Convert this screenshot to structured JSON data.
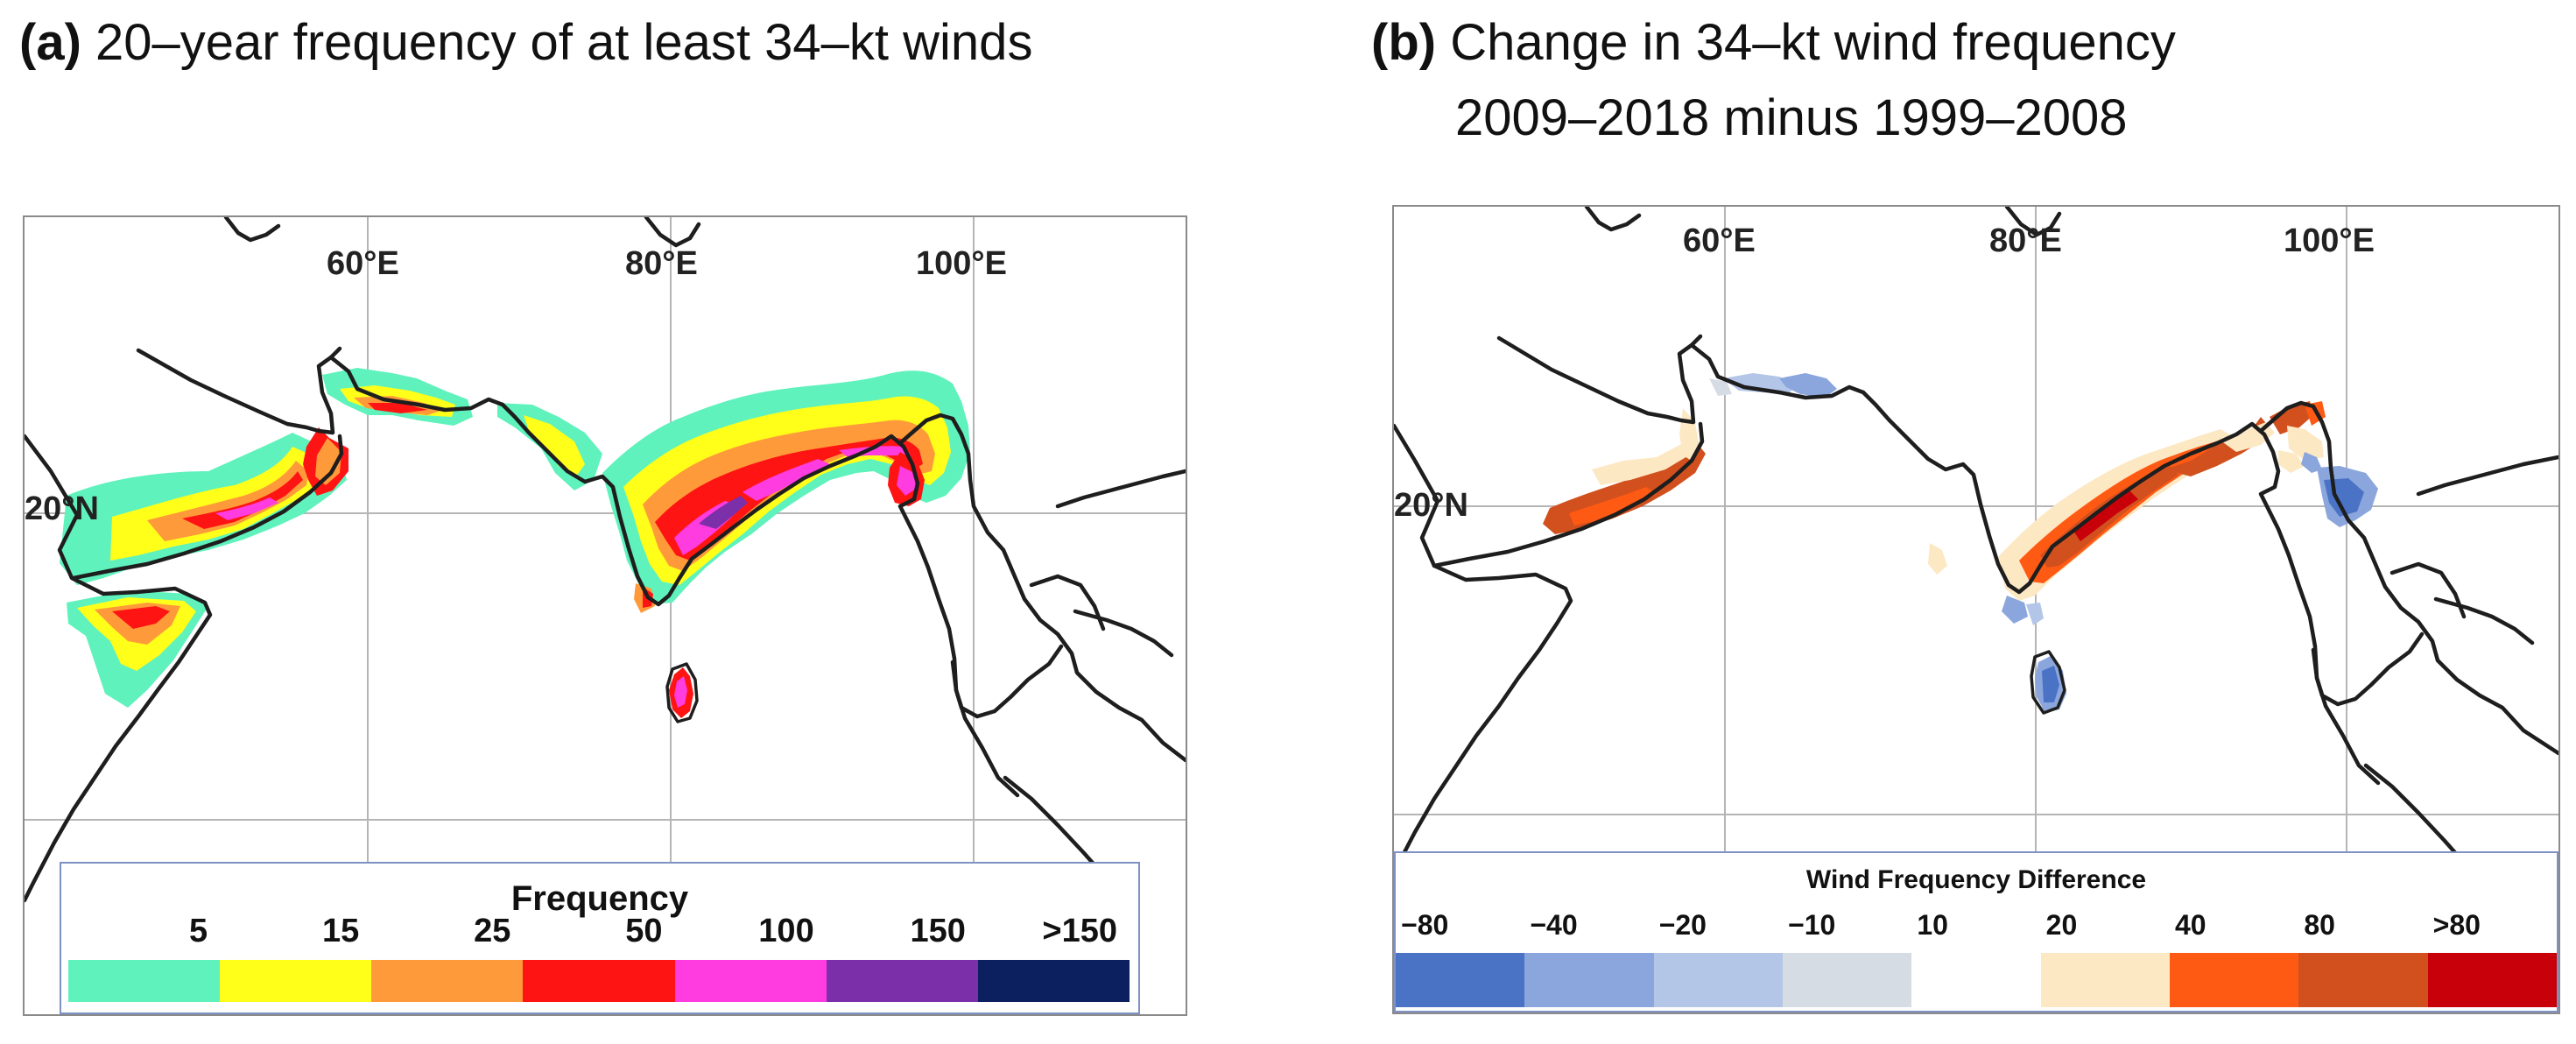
{
  "panel_a": {
    "label": "(a)",
    "title": "20–year frequency of at least 34–kt winds",
    "lon_labels": [
      "60°E",
      "80°E",
      "100°E"
    ],
    "lat_labels": [
      "20°N"
    ],
    "legend": {
      "title": "Frequency",
      "ticks": [
        "5",
        "15",
        "25",
        "50",
        "100",
        "150",
        ">150"
      ],
      "colors": [
        "#5ff2bd",
        "#ffff1a",
        "#ff9a3a",
        "#ff1414",
        "#ff3ce0",
        "#7b2fa8",
        "#0c1f5e"
      ]
    }
  },
  "panel_b": {
    "label": "(b)",
    "title_line1": "Change in 34–kt wind frequency",
    "title_line2": "2009–2018 minus 1999–2008",
    "lon_labels": [
      "60°E",
      "80°E",
      "100°E"
    ],
    "lat_labels": [
      "20°N"
    ],
    "legend": {
      "title": "Wind Frequency Difference",
      "ticks": [
        "−80",
        "−40",
        "−20",
        "−10",
        "10",
        "20",
        "40",
        "80",
        ">80"
      ],
      "colors": [
        "#4a73c6",
        "#8ba6dc",
        "#b4c6e8",
        "#d6dce4",
        "#ffffff",
        "#fde8c4",
        "#ff5a14",
        "#d2501e",
        "#c8000a"
      ]
    }
  }
}
